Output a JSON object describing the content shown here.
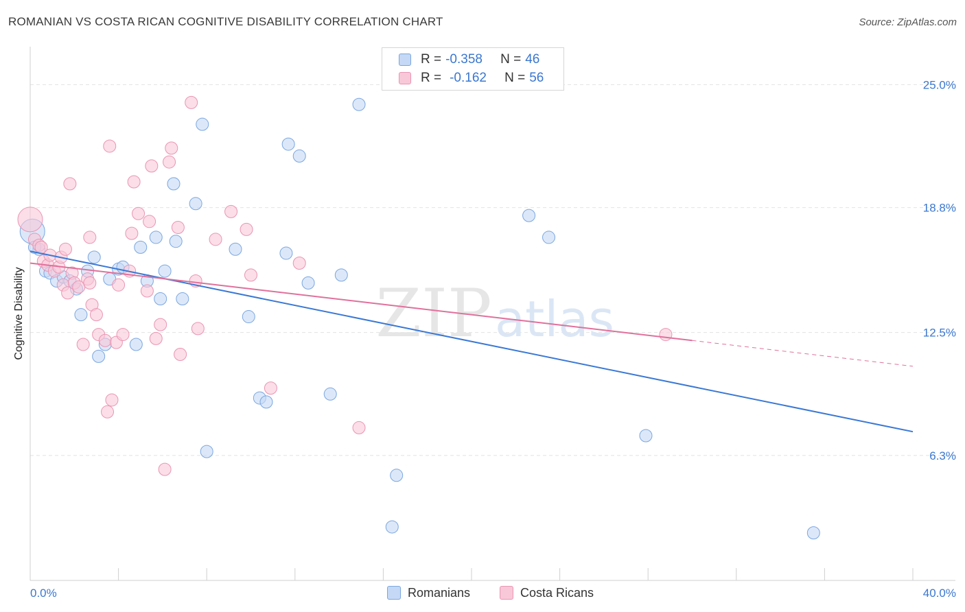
{
  "title": "ROMANIAN VS COSTA RICAN COGNITIVE DISABILITY CORRELATION CHART",
  "source": "Source: ZipAtlas.com",
  "watermark": {
    "zip": "ZIP",
    "atlas": "atlas"
  },
  "legend": [
    {
      "r_label": "R =",
      "r_value": "-0.358",
      "n_label": "N =",
      "n_value": "46"
    },
    {
      "r_label": "R =",
      "r_value": "-0.162",
      "n_label": "N =",
      "n_value": "56"
    }
  ],
  "bottom_legend": [
    "Romanians",
    "Costa Ricans"
  ],
  "colors": {
    "romanian_fill": "#c5d8f5",
    "romanian_stroke": "#7aa6e0",
    "romanian_line": "#3a78d4",
    "costarican_fill": "#f8c8d8",
    "costarican_stroke": "#ea94b2",
    "costarican_line": "#e0709a",
    "axis_text": "#3a77d0",
    "grid": "#e2e2e2"
  },
  "chart_data": {
    "type": "scatter",
    "title": "ROMANIAN VS COSTA RICAN COGNITIVE DISABILITY CORRELATION CHART",
    "xlabel": "",
    "ylabel": "Cognitive Disability",
    "xlim": [
      0,
      40
    ],
    "ylim": [
      0,
      26.5
    ],
    "x_tick_labels": [
      "0.0%",
      "40.0%"
    ],
    "y_ticks": [
      6.3,
      12.5,
      18.8,
      25.0
    ],
    "y_tick_labels": [
      "6.3%",
      "12.5%",
      "18.8%",
      "25.0%"
    ],
    "grid": true,
    "legend_position": "top-center",
    "series": [
      {
        "name": "Romanians",
        "r": -0.358,
        "n": 46,
        "trend": {
          "x": [
            0,
            40
          ],
          "y": [
            16.6,
            7.5
          ]
        },
        "points": [
          [
            0.1,
            17.6
          ],
          [
            0.4,
            16.7
          ],
          [
            0.7,
            15.6
          ],
          [
            0.9,
            15.5
          ],
          [
            1.2,
            15.1
          ],
          [
            1.5,
            15.3
          ],
          [
            1.8,
            15.1
          ],
          [
            2.1,
            14.7
          ],
          [
            2.3,
            13.4
          ],
          [
            2.6,
            15.6
          ],
          [
            2.9,
            16.3
          ],
          [
            3.1,
            11.3
          ],
          [
            3.4,
            11.9
          ],
          [
            3.6,
            15.2
          ],
          [
            4.0,
            15.7
          ],
          [
            4.2,
            15.8
          ],
          [
            4.8,
            11.9
          ],
          [
            5.0,
            16.8
          ],
          [
            5.3,
            15.1
          ],
          [
            5.7,
            17.3
          ],
          [
            5.9,
            14.2
          ],
          [
            6.1,
            15.6
          ],
          [
            6.5,
            20.0
          ],
          [
            6.6,
            17.1
          ],
          [
            6.9,
            14.2
          ],
          [
            7.5,
            19.0
          ],
          [
            7.8,
            23.0
          ],
          [
            8.0,
            6.5
          ],
          [
            9.3,
            16.7
          ],
          [
            9.9,
            13.3
          ],
          [
            10.4,
            9.2
          ],
          [
            10.7,
            9.0
          ],
          [
            11.6,
            16.5
          ],
          [
            11.7,
            22.0
          ],
          [
            12.2,
            21.4
          ],
          [
            12.6,
            15.0
          ],
          [
            13.6,
            9.4
          ],
          [
            14.1,
            15.4
          ],
          [
            14.9,
            24.0
          ],
          [
            16.4,
            2.7
          ],
          [
            16.6,
            5.3
          ],
          [
            22.6,
            18.4
          ],
          [
            23.5,
            17.3
          ],
          [
            27.9,
            7.3
          ],
          [
            35.5,
            2.4
          ],
          [
            0.2,
            16.8
          ]
        ]
      },
      {
        "name": "Costa Ricans",
        "r": -0.162,
        "n": 56,
        "trend": {
          "x": [
            0,
            30
          ],
          "y": [
            16.0,
            12.1
          ]
        },
        "trend_dashed": {
          "x": [
            30,
            40
          ],
          "y": [
            12.1,
            10.8
          ]
        },
        "points": [
          [
            0.0,
            18.2
          ],
          [
            0.2,
            17.2
          ],
          [
            0.4,
            16.9
          ],
          [
            0.6,
            16.1
          ],
          [
            0.8,
            15.9
          ],
          [
            0.9,
            16.4
          ],
          [
            1.1,
            15.6
          ],
          [
            1.3,
            15.8
          ],
          [
            1.4,
            16.3
          ],
          [
            1.5,
            14.9
          ],
          [
            1.7,
            14.5
          ],
          [
            1.9,
            15.5
          ],
          [
            2.0,
            15.0
          ],
          [
            2.2,
            14.8
          ],
          [
            2.4,
            11.9
          ],
          [
            2.6,
            15.2
          ],
          [
            2.7,
            15.0
          ],
          [
            1.8,
            20.0
          ],
          [
            2.7,
            17.3
          ],
          [
            2.8,
            13.9
          ],
          [
            3.0,
            13.4
          ],
          [
            3.1,
            12.4
          ],
          [
            3.4,
            12.1
          ],
          [
            3.6,
            21.9
          ],
          [
            3.7,
            9.1
          ],
          [
            3.9,
            12.0
          ],
          [
            4.0,
            14.9
          ],
          [
            4.2,
            12.4
          ],
          [
            4.5,
            15.6
          ],
          [
            4.6,
            17.5
          ],
          [
            4.7,
            20.1
          ],
          [
            4.9,
            18.5
          ],
          [
            5.3,
            14.6
          ],
          [
            5.4,
            18.1
          ],
          [
            5.5,
            20.9
          ],
          [
            5.7,
            12.2
          ],
          [
            5.9,
            12.9
          ],
          [
            6.1,
            5.6
          ],
          [
            6.3,
            21.1
          ],
          [
            6.4,
            21.8
          ],
          [
            6.7,
            17.8
          ],
          [
            6.8,
            11.4
          ],
          [
            7.5,
            15.1
          ],
          [
            7.6,
            12.7
          ],
          [
            7.3,
            24.1
          ],
          [
            8.4,
            17.2
          ],
          [
            9.1,
            18.6
          ],
          [
            9.8,
            17.7
          ],
          [
            10.0,
            15.4
          ],
          [
            10.9,
            9.7
          ],
          [
            12.2,
            16.0
          ],
          [
            14.9,
            7.7
          ],
          [
            3.5,
            8.5
          ],
          [
            28.8,
            12.4
          ],
          [
            1.6,
            16.7
          ],
          [
            0.5,
            16.8
          ]
        ]
      }
    ]
  }
}
